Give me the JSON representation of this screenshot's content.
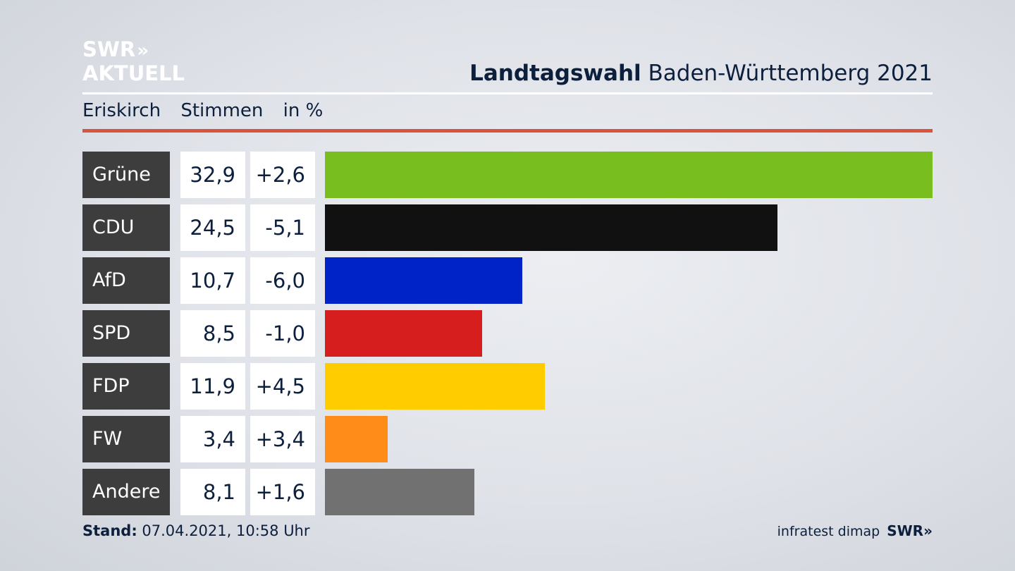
{
  "logo": {
    "line1": "SWR",
    "arrows": "»",
    "line2": "AKTUELL"
  },
  "header": {
    "title_bold": "Landtagswahl",
    "title_rest": "Baden-Württemberg 2021"
  },
  "subheader": {
    "place": "Eriskirch",
    "measure": "Stimmen",
    "unit": "in %"
  },
  "footer": {
    "stand_label": "Stand:",
    "stand_value": "07.04.2021, 10:58 Uhr",
    "source": "infratest dimap",
    "brand": "SWR»"
  },
  "chart_data": {
    "type": "bar",
    "categories": [
      "Grüne",
      "CDU",
      "AfD",
      "SPD",
      "FDP",
      "FW",
      "Andere"
    ],
    "values": [
      32.9,
      24.5,
      10.7,
      8.5,
      11.9,
      3.4,
      8.1
    ],
    "value_labels": [
      "32,9",
      "24,5",
      "10,7",
      "8,5",
      "11,9",
      "3,4",
      "8,1"
    ],
    "diff_labels": [
      "+2,6",
      "-5,1",
      "-6,0",
      "-1,0",
      "+4,5",
      "+3,4",
      "+1,6"
    ],
    "colors": [
      "#78be1e",
      "#111111",
      "#0023c8",
      "#d61e1e",
      "#ffcc00",
      "#ff8c19",
      "#717171"
    ],
    "xlim": [
      0,
      32.9
    ]
  }
}
